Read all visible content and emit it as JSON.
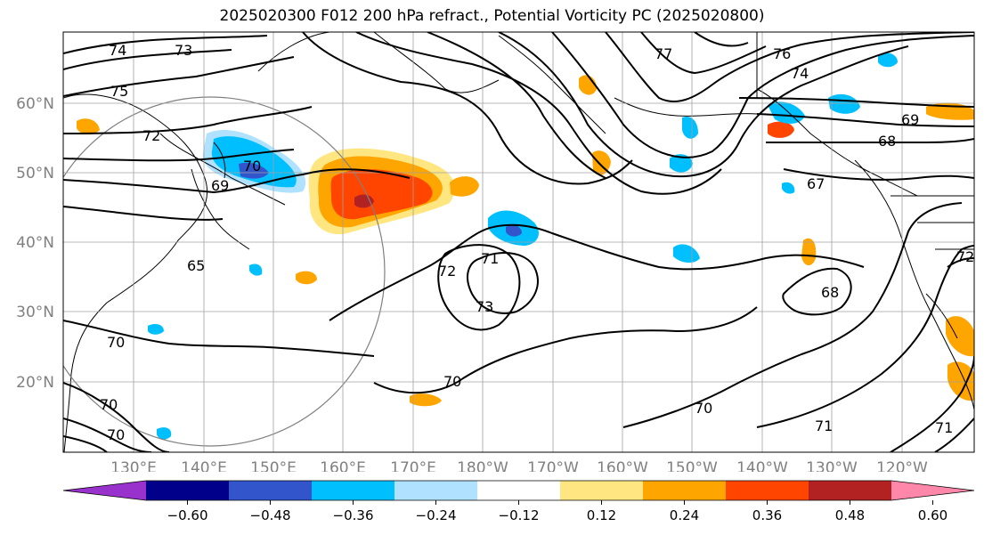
{
  "title": "2025020300 F012 200 hPa refract., Potential Vorticity PC (2025020800)",
  "axes": {
    "lat_labels": [
      "60°N",
      "50°N",
      "40°N",
      "30°N",
      "20°N"
    ],
    "lon_labels": [
      "130°E",
      "140°E",
      "150°E",
      "160°E",
      "170°E",
      "180°W",
      "170°W",
      "160°W",
      "150°W",
      "140°W",
      "130°W",
      "120°W"
    ],
    "tick_color": "#808080"
  },
  "contour_labels": [
    "74",
    "73",
    "75",
    "72",
    "70",
    "69",
    "65",
    "77",
    "76",
    "74",
    "69",
    "68",
    "67",
    "72",
    "71",
    "73",
    "70",
    "70",
    "68",
    "72",
    "70",
    "70",
    "70",
    "71",
    "71"
  ],
  "colorbar": {
    "tick_labels": [
      "−0.60",
      "−0.48",
      "−0.36",
      "−0.24",
      "−0.12",
      "0.12",
      "0.24",
      "0.36",
      "0.48",
      "0.60"
    ],
    "colors": [
      "#9932cc",
      "#00008b",
      "#3355cc",
      "#00bfff",
      "#b0e2ff",
      "#ffffff",
      "#ffe680",
      "#ffa500",
      "#ff4500",
      "#b22222",
      "#ff88aa"
    ]
  }
}
